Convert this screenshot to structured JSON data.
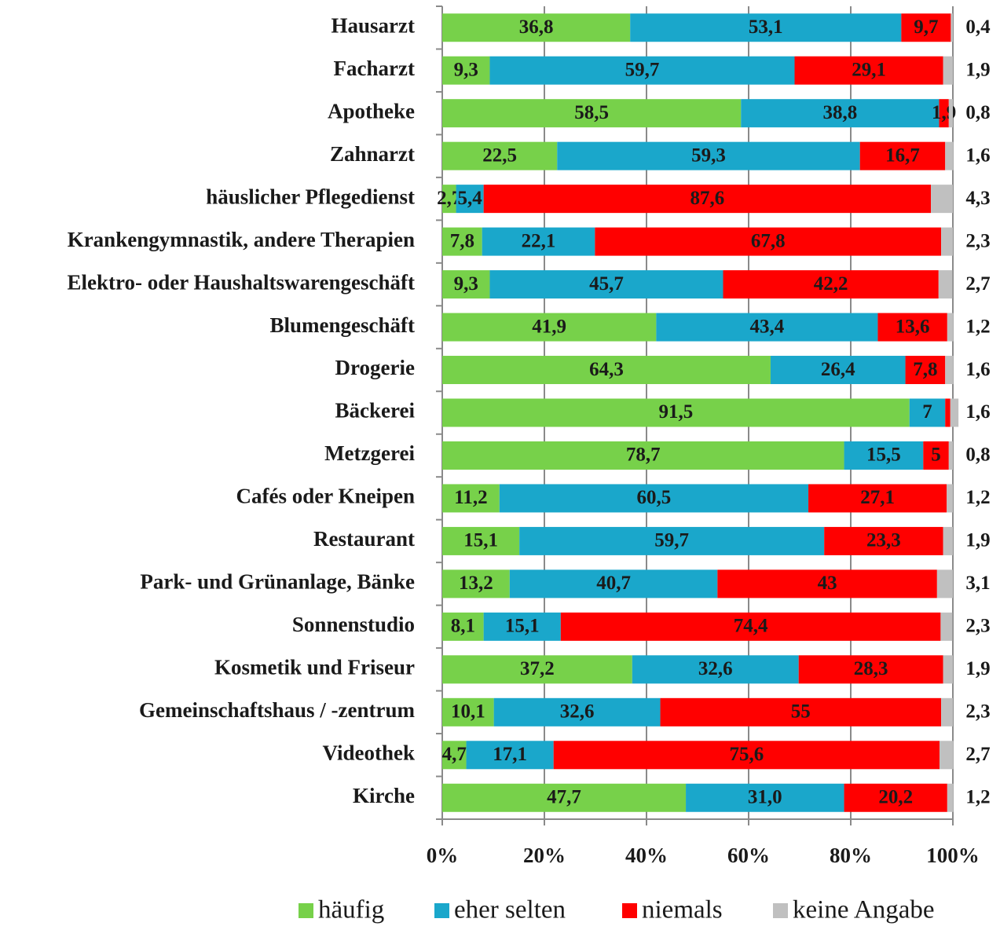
{
  "chart_data": {
    "type": "stacked_barh",
    "categories": [
      "Hausarzt",
      "Facharzt",
      "Apotheke",
      "Zahnarzt",
      "häuslicher Pflegedienst",
      "Krankengymnastik, andere Therapien",
      "Elektro- oder Haushaltswarengeschäft",
      "Blumengeschäft",
      "Drogerie",
      "Bäckerei",
      "Metzgerei",
      "Cafés oder Kneipen",
      "Restaurant",
      "Park- und Grünanlage, Bänke",
      "Sonnenstudio",
      "Kosmetik und Friseur",
      "Gemeinschaftshaus / -zentrum",
      "Videothek",
      "Kirche"
    ],
    "series": [
      {
        "name": "häufig",
        "color": "#77d14a",
        "values": [
          36.8,
          9.3,
          58.5,
          22.5,
          2.7,
          7.8,
          9.3,
          41.9,
          64.3,
          91.5,
          78.7,
          11.2,
          15.1,
          13.2,
          8.1,
          37.2,
          10.1,
          4.7,
          47.7
        ],
        "value_labels": [
          "36,8",
          "9,3",
          "58,5",
          "22,5",
          "2,7",
          "7,8",
          "9,3",
          "41,9",
          "64,3",
          "91,5",
          "78,7",
          "11,2",
          "15,1",
          "13,2",
          "8,1",
          "37,2",
          "10,1",
          "4,7",
          "47,7"
        ]
      },
      {
        "name": "eher selten",
        "color": "#1aa7cb",
        "values": [
          53.1,
          59.7,
          38.8,
          59.3,
          5.4,
          22.1,
          45.7,
          43.4,
          26.4,
          7,
          15.5,
          60.5,
          59.7,
          40.7,
          15.1,
          32.6,
          32.6,
          17.1,
          31.0
        ],
        "value_labels": [
          "53,1",
          "59,7",
          "38,8",
          "59,3",
          "5,4",
          "22,1",
          "45,7",
          "43,4",
          "26,4",
          "7",
          "15,5",
          "60,5",
          "59,7",
          "40,7",
          "15,1",
          "32,6",
          "32,6",
          "17,1",
          "31,0"
        ]
      },
      {
        "name": "niemals",
        "color": "#ff0000",
        "values": [
          9.7,
          29.1,
          1.9,
          16.7,
          87.6,
          67.8,
          42.2,
          13.6,
          7.8,
          1.0,
          5,
          27.1,
          23.3,
          43,
          74.4,
          28.3,
          55,
          75.6,
          20.2
        ],
        "value_labels": [
          "9,7",
          "29,1",
          "1,9",
          "16,7",
          "87,6",
          "67,8",
          "42,2",
          "13,6",
          "7,8",
          null,
          "5",
          "27,1",
          "23,3",
          "43",
          "74,4",
          "28,3",
          "55",
          "75,6",
          "20,2"
        ]
      },
      {
        "name": "keine Angabe",
        "color": "#c0c0c0",
        "values": [
          0.4,
          1.9,
          0.8,
          1.6,
          4.3,
          2.3,
          2.7,
          1.2,
          1.6,
          1.6,
          0.8,
          1.2,
          1.9,
          3.1,
          2.3,
          1.9,
          2.3,
          2.7,
          1.2
        ],
        "value_labels": [
          "0,4",
          "1,9",
          "0,8",
          "1,6",
          "4,3",
          "2,3",
          "2,7",
          "1,2",
          "1,6",
          "1,6",
          "0,8",
          "1,2",
          "1,9",
          "3,1",
          "2,3",
          "1,9",
          "2,3",
          "2,7",
          "1,2"
        ]
      }
    ],
    "xlim": [
      0,
      100
    ],
    "xticks": [
      {
        "value": 0,
        "label": "0%"
      },
      {
        "value": 20,
        "label": "20%"
      },
      {
        "value": 40,
        "label": "40%"
      },
      {
        "value": 60,
        "label": "60%"
      },
      {
        "value": 80,
        "label": "80%"
      },
      {
        "value": 100,
        "label": "100%"
      }
    ],
    "grid": true
  }
}
